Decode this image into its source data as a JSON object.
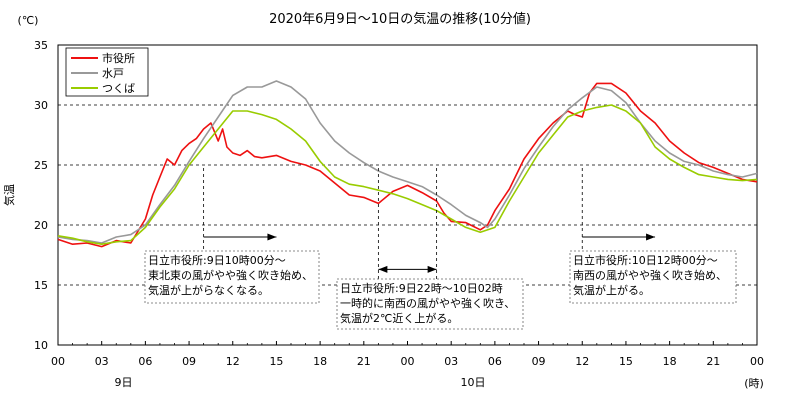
{
  "chart_data": {
    "type": "line",
    "title": "2020年6月9日～10日の気温の推移(10分値)",
    "ylabel": "気温",
    "yunit": "(℃)",
    "xunit": "(時)",
    "ylim": [
      10,
      35
    ],
    "yticks": [
      10,
      15,
      20,
      25,
      30,
      35
    ],
    "xlim": [
      0,
      48
    ],
    "xtick_hours": [
      0,
      3,
      6,
      9,
      12,
      15,
      18,
      21,
      24,
      27,
      30,
      33,
      36,
      39,
      42,
      45,
      48
    ],
    "xtick_labels": [
      "00",
      "03",
      "06",
      "09",
      "12",
      "15",
      "18",
      "21",
      "00",
      "03",
      "06",
      "09",
      "12",
      "15",
      "18",
      "21",
      "00"
    ],
    "day_labels": [
      {
        "hour": 4.5,
        "text": "9日"
      },
      {
        "hour": 28.5,
        "text": "10日"
      }
    ],
    "grid": "dashed horizontal at 15, 20, 25, 30",
    "legend_position": "top-left",
    "series": [
      {
        "name": "市役所",
        "color": "#ee1111",
        "points": [
          [
            0,
            18.8
          ],
          [
            1,
            18.4
          ],
          [
            2,
            18.5
          ],
          [
            3,
            18.2
          ],
          [
            4,
            18.7
          ],
          [
            5,
            18.5
          ],
          [
            6,
            20.5
          ],
          [
            6.5,
            22.5
          ],
          [
            7,
            24
          ],
          [
            7.5,
            25.5
          ],
          [
            8,
            25
          ],
          [
            8.5,
            26.2
          ],
          [
            9,
            26.8
          ],
          [
            9.5,
            27.2
          ],
          [
            10,
            28
          ],
          [
            10.5,
            28.5
          ],
          [
            11,
            27
          ],
          [
            11.3,
            28
          ],
          [
            11.6,
            26.5
          ],
          [
            12,
            26
          ],
          [
            12.5,
            25.8
          ],
          [
            13,
            26.2
          ],
          [
            13.5,
            25.7
          ],
          [
            14,
            25.6
          ],
          [
            15,
            25.8
          ],
          [
            16,
            25.3
          ],
          [
            17,
            25
          ],
          [
            18,
            24.5
          ],
          [
            19,
            23.5
          ],
          [
            20,
            22.5
          ],
          [
            21,
            22.3
          ],
          [
            22,
            21.8
          ],
          [
            23,
            22.8
          ],
          [
            24,
            23.3
          ],
          [
            25,
            22.7
          ],
          [
            26,
            22
          ],
          [
            26.5,
            21
          ],
          [
            27,
            20.3
          ],
          [
            28,
            20.2
          ],
          [
            29,
            19.6
          ],
          [
            29.5,
            20
          ],
          [
            30,
            21.2
          ],
          [
            31,
            23
          ],
          [
            32,
            25.5
          ],
          [
            33,
            27.2
          ],
          [
            34,
            28.5
          ],
          [
            35,
            29.5
          ],
          [
            35.5,
            29.2
          ],
          [
            36,
            29
          ],
          [
            36.5,
            31
          ],
          [
            37,
            31.8
          ],
          [
            38,
            31.8
          ],
          [
            39,
            31
          ],
          [
            40,
            29.5
          ],
          [
            41,
            28.5
          ],
          [
            42,
            27
          ],
          [
            43,
            26
          ],
          [
            44,
            25.2
          ],
          [
            45,
            24.8
          ],
          [
            46,
            24.3
          ],
          [
            47,
            23.8
          ],
          [
            48,
            23.6
          ]
        ]
      },
      {
        "name": "水戸",
        "color": "#999999",
        "points": [
          [
            0,
            19
          ],
          [
            1,
            18.8
          ],
          [
            2,
            18.7
          ],
          [
            3,
            18.5
          ],
          [
            4,
            19
          ],
          [
            5,
            19.2
          ],
          [
            6,
            20
          ],
          [
            7,
            21.7
          ],
          [
            8,
            23.3
          ],
          [
            9,
            25.3
          ],
          [
            10,
            27.2
          ],
          [
            11,
            29
          ],
          [
            12,
            30.8
          ],
          [
            13,
            31.5
          ],
          [
            14,
            31.5
          ],
          [
            15,
            32
          ],
          [
            16,
            31.5
          ],
          [
            17,
            30.5
          ],
          [
            18,
            28.5
          ],
          [
            19,
            27
          ],
          [
            20,
            26
          ],
          [
            21,
            25.2
          ],
          [
            22,
            24.5
          ],
          [
            23,
            24
          ],
          [
            24,
            23.6
          ],
          [
            25,
            23.2
          ],
          [
            26,
            22.5
          ],
          [
            27,
            21.7
          ],
          [
            28,
            20.8
          ],
          [
            29,
            20.2
          ],
          [
            29.5,
            19.8
          ],
          [
            30,
            20.5
          ],
          [
            31,
            22.5
          ],
          [
            32,
            24.7
          ],
          [
            33,
            26.5
          ],
          [
            34,
            28.2
          ],
          [
            35,
            29.6
          ],
          [
            36,
            30.6
          ],
          [
            37,
            31.5
          ],
          [
            38,
            31.2
          ],
          [
            39,
            30.2
          ],
          [
            40,
            28.5
          ],
          [
            41,
            27
          ],
          [
            42,
            26
          ],
          [
            43,
            25.3
          ],
          [
            44,
            25
          ],
          [
            45,
            24.5
          ],
          [
            46,
            24.2
          ],
          [
            47,
            24
          ],
          [
            48,
            24.3
          ]
        ]
      },
      {
        "name": "つくば",
        "color": "#99cc00",
        "points": [
          [
            0,
            19.1
          ],
          [
            1,
            18.9
          ],
          [
            2,
            18.6
          ],
          [
            3,
            18.4
          ],
          [
            4,
            18.6
          ],
          [
            5,
            18.7
          ],
          [
            6,
            19.8
          ],
          [
            7,
            21.5
          ],
          [
            8,
            23
          ],
          [
            9,
            25
          ],
          [
            10,
            26.5
          ],
          [
            11,
            28
          ],
          [
            12,
            29.5
          ],
          [
            13,
            29.5
          ],
          [
            14,
            29.2
          ],
          [
            15,
            28.8
          ],
          [
            16,
            28
          ],
          [
            17,
            27
          ],
          [
            18,
            25.3
          ],
          [
            19,
            24
          ],
          [
            20,
            23.4
          ],
          [
            21,
            23.2
          ],
          [
            22,
            22.9
          ],
          [
            23,
            22.6
          ],
          [
            24,
            22.2
          ],
          [
            25,
            21.7
          ],
          [
            26,
            21.2
          ],
          [
            27,
            20.5
          ],
          [
            28,
            19.8
          ],
          [
            29,
            19.4
          ],
          [
            30,
            19.8
          ],
          [
            31,
            22
          ],
          [
            32,
            24
          ],
          [
            33,
            26
          ],
          [
            34,
            27.5
          ],
          [
            35,
            29
          ],
          [
            36,
            29.5
          ],
          [
            37,
            29.8
          ],
          [
            38,
            30
          ],
          [
            39,
            29.5
          ],
          [
            40,
            28.5
          ],
          [
            41,
            26.5
          ],
          [
            42,
            25.5
          ],
          [
            43,
            24.8
          ],
          [
            44,
            24.2
          ],
          [
            45,
            24
          ],
          [
            46,
            23.8
          ],
          [
            47,
            23.7
          ],
          [
            48,
            23.8
          ]
        ]
      }
    ],
    "annotations": [
      {
        "lines": [
          "日立市役所:9日10時00分～",
          "東北東の風がやや強く吹き始め、",
          "気温が上がらなくなる。"
        ],
        "marker_hour": 10,
        "arrow": {
          "from_hour": 10,
          "to_hour": 15,
          "y": 19
        }
      },
      {
        "lines": [
          "日立市役所:9日22時～10日02時",
          "一時的に南西の風がやや強く吹き、",
          "気温が2℃近く上がる。"
        ],
        "marker_hours": [
          22,
          26
        ],
        "arrow": {
          "from_hour": 22,
          "to_hour": 26,
          "y": 16.3,
          "double": true
        }
      },
      {
        "lines": [
          "日立市役所:10日12時00分～",
          "南西の風がやや強く吹き始め、",
          "気温が上がる。"
        ],
        "marker_hour": 36,
        "arrow": {
          "from_hour": 36,
          "to_hour": 41,
          "y": 19
        }
      }
    ]
  }
}
